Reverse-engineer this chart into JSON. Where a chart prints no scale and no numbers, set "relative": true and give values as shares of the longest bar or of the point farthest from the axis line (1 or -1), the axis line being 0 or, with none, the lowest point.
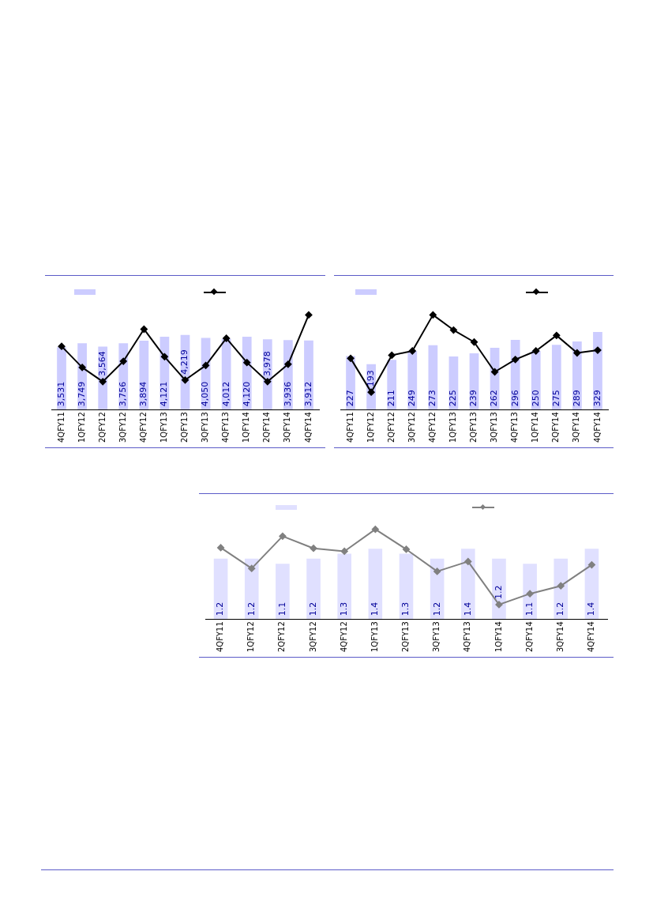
{
  "chart_data": [
    {
      "type": "bar",
      "categories": [
        "4QFY11",
        "1QFY12",
        "2QFY12",
        "3QFY12",
        "4QFY12",
        "1QFY13",
        "2QFY13",
        "3QFY13",
        "4QFY13",
        "1QFY14",
        "2QFY14",
        "3QFY14",
        "4QFY14"
      ],
      "tick_labels": "x",
      "grid": false,
      "series": [
        {
          "color": "#ccccff",
          "values": [
            3531,
            3749,
            3564,
            3756,
            3894,
            4121,
            4219,
            4050,
            4012,
            4120,
            3978,
            3936,
            3912
          ],
          "value_labels": [
            "3,531",
            "3,749",
            "3,564",
            "3,756",
            "3,894",
            "4,121",
            "4,219",
            "4,050",
            "4,012",
            "4,120",
            "3,978",
            "3,936",
            "3,912"
          ]
        }
      ]
    },
    {
      "type": "line",
      "relative": true,
      "categories": [
        null,
        null,
        null,
        null,
        null,
        null,
        null,
        null,
        null,
        null,
        null,
        null,
        null
      ],
      "tick_labels": false,
      "grid": false,
      "marker": "diamond",
      "series": [
        {
          "color": "#000000",
          "values": [
            0.668,
            0.445,
            0.295,
            0.51,
            0.849,
            0.558,
            0.312,
            0.466,
            0.753,
            0.497,
            0.295,
            0.479,
            1
          ]
        }
      ]
    },
    {
      "type": "bar",
      "categories": [
        "4QFY11",
        "1QFY12",
        "2QFY12",
        "3QFY12",
        "4QFY12",
        "1QFY13",
        "2QFY13",
        "3QFY13",
        "4QFY13",
        "1QFY14",
        "2QFY14",
        "3QFY14",
        "4QFY14"
      ],
      "tick_labels": "x",
      "grid": false,
      "series": [
        {
          "color": "#ccccff",
          "values": [
            227,
            193,
            211,
            249,
            273,
            225,
            239,
            262,
            296,
            250,
            275,
            289,
            329
          ],
          "value_labels": [
            "227",
            "193",
            "211",
            "249",
            "273",
            "225",
            "239",
            "262",
            "296",
            "250",
            "275",
            "289",
            "329"
          ]
        }
      ]
    },
    {
      "type": "line",
      "relative": true,
      "categories": [
        null,
        null,
        null,
        null,
        null,
        null,
        null,
        null,
        null,
        null,
        null,
        null,
        null
      ],
      "tick_labels": false,
      "grid": false,
      "marker": "diamond",
      "series": [
        {
          "color": "#000000",
          "values": [
            0.541,
            0.184,
            0.574,
            0.619,
            1,
            0.84,
            0.713,
            0.398,
            0.529,
            0.619,
            0.783,
            0.598,
            0.627
          ]
        }
      ]
    },
    {
      "type": "bar",
      "categories": [
        "4QFY11",
        "1QFY12",
        "2QFY12",
        "3QFY12",
        "4QFY12",
        "1QFY13",
        "2QFY13",
        "3QFY13",
        "4QFY13",
        "1QFY14",
        "2QFY14",
        "3QFY14",
        "4QFY14"
      ],
      "tick_labels": "x",
      "grid": false,
      "series": [
        {
          "color": "#e0e0ff",
          "values": [
            1.2,
            1.2,
            1.1,
            1.2,
            1.3,
            1.4,
            1.3,
            1.2,
            1.4,
            1.2,
            1.1,
            1.2,
            1.4
          ],
          "value_labels": [
            "1.2",
            "1.2",
            "1.1",
            "1.2",
            "1.3",
            "1.4",
            "1.3",
            "1.2",
            "1.4",
            "1.2",
            "1.1",
            "1.2",
            "1.4"
          ]
        }
      ]
    },
    {
      "type": "line",
      "relative": true,
      "categories": [
        null,
        null,
        null,
        null,
        null,
        null,
        null,
        null,
        null,
        null,
        null,
        null,
        null
      ],
      "tick_labels": false,
      "grid": false,
      "marker": "diamond",
      "series": [
        {
          "color": "#808080",
          "values": [
            0.795,
            0.564,
            0.923,
            0.788,
            0.755,
            1,
            0.777,
            0.531,
            0.641,
            0.161,
            0.282,
            0.37,
            0.604
          ]
        }
      ]
    }
  ]
}
